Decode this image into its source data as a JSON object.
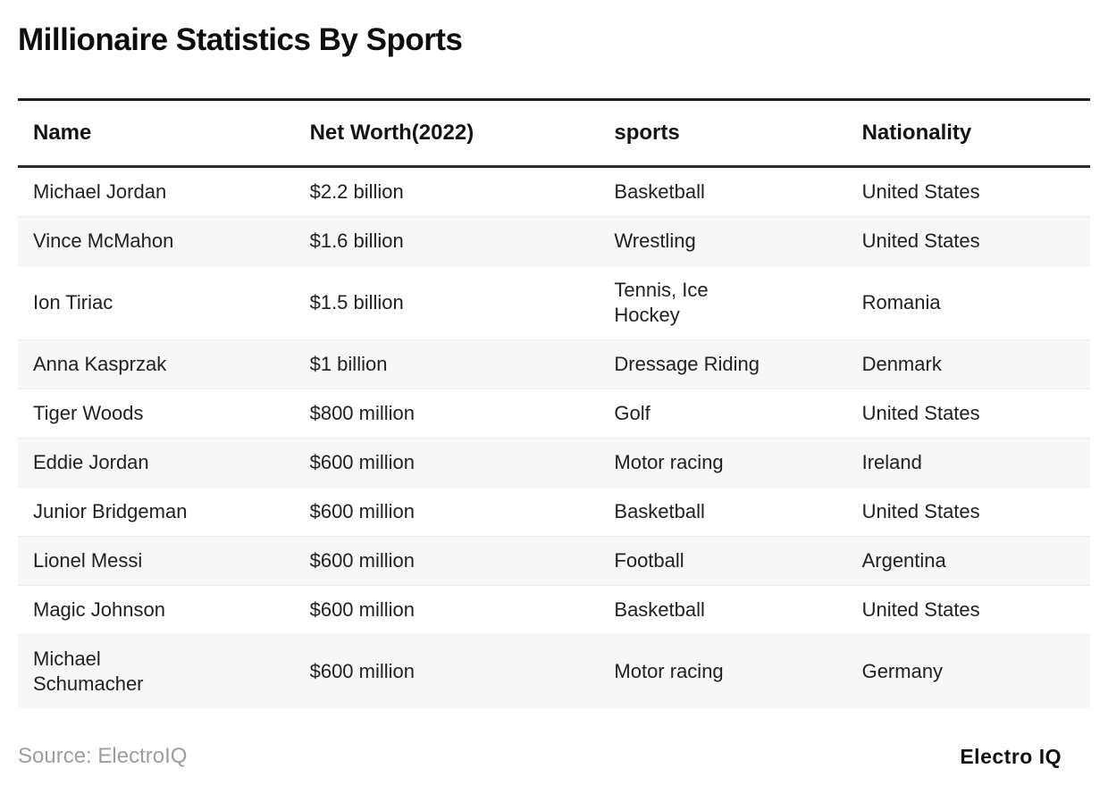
{
  "title": "Millionaire Statistics By Sports",
  "table": {
    "columns": [
      "Name",
      "Net Worth(2022)",
      "sports",
      "Nationality"
    ],
    "rows": [
      {
        "name": "Michael Jordan",
        "net_worth": "$2.2 billion",
        "sport": "Basketball",
        "nationality": "United States"
      },
      {
        "name": "Vince McMahon",
        "net_worth": "$1.6 billion",
        "sport": "Wrestling",
        "nationality": "United States"
      },
      {
        "name": "Ion Tiriac",
        "net_worth": "$1.5 billion",
        "sport": "Tennis, Ice Hockey",
        "nationality": "Romania"
      },
      {
        "name": "Anna Kasprzak",
        "net_worth": "$1 billion",
        "sport": "Dressage Riding",
        "nationality": "Denmark"
      },
      {
        "name": "Tiger Woods",
        "net_worth": "$800 million",
        "sport": "Golf",
        "nationality": "United States"
      },
      {
        "name": "Eddie Jordan",
        "net_worth": "$600 million",
        "sport": "Motor racing",
        "nationality": "Ireland"
      },
      {
        "name": "Junior Bridgeman",
        "net_worth": "$600 million",
        "sport": "Basketball",
        "nationality": "United States"
      },
      {
        "name": "Lionel Messi",
        "net_worth": "$600 million",
        "sport": "Football",
        "nationality": "Argentina"
      },
      {
        "name": "Magic Johnson",
        "net_worth": "$600 million",
        "sport": "Basketball",
        "nationality": "United States"
      },
      {
        "name": "Michael Schumacher",
        "net_worth": "$600 million",
        "sport": "Motor racing",
        "nationality": "Germany"
      }
    ]
  },
  "footer": {
    "source": "Source: ElectroIQ",
    "logo": "Electro IQ"
  },
  "colors": {
    "stripe": "#f7f7f7",
    "rule_dark": "#1e1e1e",
    "row_divider": "#ebebeb",
    "text": "#212121",
    "muted": "#9e9e9e"
  },
  "chart_data": {
    "type": "table",
    "title": "Millionaire Statistics By Sports",
    "columns": [
      "Name",
      "Net Worth(2022)",
      "sports",
      "Nationality"
    ],
    "rows": [
      [
        "Michael Jordan",
        "$2.2 billion",
        "Basketball",
        "United States"
      ],
      [
        "Vince McMahon",
        "$1.6 billion",
        "Wrestling",
        "United States"
      ],
      [
        "Ion Tiriac",
        "$1.5 billion",
        "Tennis, Ice Hockey",
        "Romania"
      ],
      [
        "Anna Kasprzak",
        "$1 billion",
        "Dressage Riding",
        "Denmark"
      ],
      [
        "Tiger Woods",
        "$800 million",
        "Golf",
        "United States"
      ],
      [
        "Eddie Jordan",
        "$600 million",
        "Motor racing",
        "Ireland"
      ],
      [
        "Junior Bridgeman",
        "$600 million",
        "Basketball",
        "United States"
      ],
      [
        "Lionel Messi",
        "$600 million",
        "Football",
        "Argentina"
      ],
      [
        "Magic Johnson",
        "$600 million",
        "Basketball",
        "United States"
      ],
      [
        "Michael Schumacher",
        "$600 million",
        "Motor racing",
        "Germany"
      ]
    ],
    "net_worth_values_usd_millions": [
      2200,
      1600,
      1500,
      1000,
      800,
      600,
      600,
      600,
      600,
      600
    ],
    "source": "ElectroIQ"
  }
}
